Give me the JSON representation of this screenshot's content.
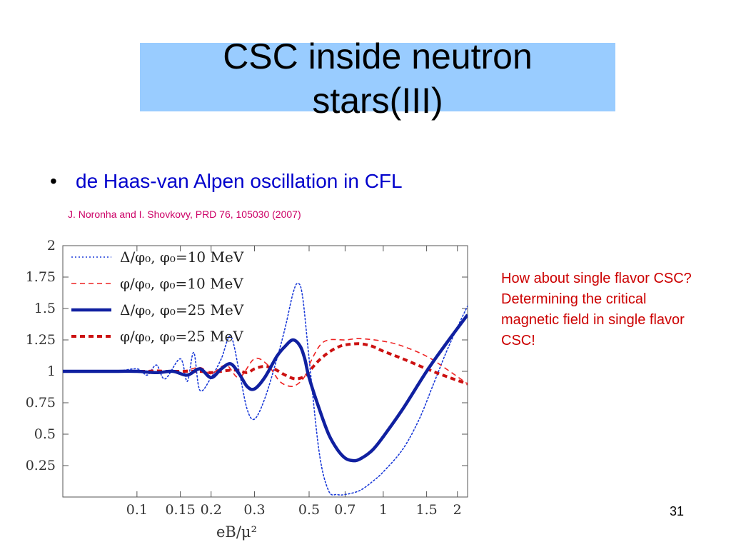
{
  "slide": {
    "title_line1": "CSC inside neutron",
    "title_line2": "stars(III)",
    "bullet": "de Haas-van Alpen oscillation in CFL",
    "citation": "J. Noronha and I. Shovkovy, PRD 76, 105030 (2007)",
    "side_note": "How about single flavor CSC? Determining the critical magnetic field in single flavor CSC!",
    "slide_number": "31"
  },
  "colors": {
    "title_band": "#99ccff",
    "bullet_text": "#0000cc",
    "citation": "#cc0066",
    "note": "#cc0000",
    "series_blue": "#1020a0",
    "series_red": "#cc1111"
  },
  "chart_data": {
    "type": "line",
    "xscale": "log",
    "xlim": [
      0.05,
      2.2
    ],
    "ylim": [
      0,
      2
    ],
    "xlabel": "eB/μ²",
    "ylabel": "",
    "xticks": [
      "0.1",
      "0.15",
      "0.2",
      "0.3",
      "0.5",
      "0.7",
      "1",
      "1.5",
      "2"
    ],
    "xtick_values": [
      0.1,
      0.15,
      0.2,
      0.3,
      0.5,
      0.7,
      1,
      1.5,
      2
    ],
    "yticks": [
      "0.25",
      "0.5",
      "0.75",
      "1",
      "1.25",
      "1.5",
      "1.75",
      "2"
    ],
    "ytick_values": [
      0.25,
      0.5,
      0.75,
      1,
      1.25,
      1.5,
      1.75,
      2
    ],
    "legend_position": "top-left",
    "series": [
      {
        "name": "Δ/φ₀, φ₀=10 MeV",
        "color": "#1a3ad8",
        "style": "dotted",
        "width": "thin",
        "x": [
          0.05,
          0.08,
          0.1,
          0.11,
          0.12,
          0.13,
          0.15,
          0.16,
          0.17,
          0.18,
          0.2,
          0.22,
          0.24,
          0.26,
          0.28,
          0.3,
          0.33,
          0.37,
          0.4,
          0.43,
          0.45,
          0.47,
          0.5,
          0.55,
          0.6,
          0.65,
          0.7,
          0.8,
          0.9,
          1.0,
          1.2,
          1.4,
          1.6,
          1.8,
          2.0,
          2.2
        ],
        "y": [
          1.0,
          1.0,
          1.02,
          0.97,
          1.05,
          0.94,
          1.1,
          0.92,
          1.15,
          0.85,
          0.95,
          1.1,
          1.28,
          1.0,
          0.7,
          0.62,
          0.78,
          1.1,
          1.35,
          1.62,
          1.7,
          1.6,
          1.1,
          0.35,
          0.05,
          0.02,
          0.02,
          0.05,
          0.12,
          0.2,
          0.38,
          0.62,
          0.9,
          1.15,
          1.35,
          1.52
        ]
      },
      {
        "name": "φ/φ₀, φ₀=10 MeV",
        "color": "#ee2222",
        "style": "dashed",
        "width": "thin",
        "x": [
          0.05,
          0.08,
          0.1,
          0.12,
          0.15,
          0.18,
          0.2,
          0.23,
          0.26,
          0.3,
          0.34,
          0.38,
          0.42,
          0.45,
          0.48,
          0.5,
          0.55,
          0.6,
          0.7,
          0.8,
          1.0,
          1.2,
          1.5,
          1.8,
          2.2
        ],
        "y": [
          1.0,
          1.0,
          1.0,
          1.01,
          1.0,
          1.03,
          0.98,
          1.05,
          0.95,
          1.1,
          1.05,
          0.92,
          0.88,
          0.9,
          0.96,
          1.05,
          1.2,
          1.25,
          1.25,
          1.26,
          1.24,
          1.2,
          1.12,
          1.02,
          0.9
        ]
      },
      {
        "name": "Δ/φ₀, φ₀=25 MeV",
        "color": "#1020a0",
        "style": "solid",
        "width": "thick",
        "x": [
          0.05,
          0.08,
          0.1,
          0.12,
          0.14,
          0.16,
          0.18,
          0.2,
          0.22,
          0.24,
          0.26,
          0.28,
          0.3,
          0.33,
          0.37,
          0.4,
          0.43,
          0.46,
          0.48,
          0.5,
          0.55,
          0.6,
          0.65,
          0.7,
          0.75,
          0.8,
          0.9,
          1.0,
          1.2,
          1.5,
          1.8,
          2.2
        ],
        "y": [
          1.0,
          1.0,
          1.0,
          0.99,
          1.0,
          0.97,
          1.02,
          0.95,
          1.02,
          1.06,
          0.98,
          0.88,
          0.86,
          0.95,
          1.12,
          1.2,
          1.25,
          1.2,
          1.1,
          0.95,
          0.7,
          0.5,
          0.38,
          0.31,
          0.29,
          0.3,
          0.37,
          0.48,
          0.7,
          1.0,
          1.22,
          1.45
        ]
      },
      {
        "name": "φ/φ₀, φ₀=25 MeV",
        "color": "#cc1111",
        "style": "dashed",
        "width": "thick",
        "x": [
          0.05,
          0.08,
          0.1,
          0.12,
          0.15,
          0.18,
          0.2,
          0.22,
          0.25,
          0.28,
          0.3,
          0.33,
          0.36,
          0.4,
          0.44,
          0.48,
          0.5,
          0.55,
          0.6,
          0.65,
          0.7,
          0.8,
          0.9,
          1.0,
          1.2,
          1.5,
          1.8,
          2.2
        ],
        "y": [
          1.0,
          1.0,
          1.0,
          1.0,
          1.0,
          1.0,
          0.99,
          1.0,
          1.01,
          0.99,
          1.02,
          1.04,
          1.02,
          0.97,
          0.94,
          0.96,
          1.0,
          1.09,
          1.15,
          1.19,
          1.21,
          1.22,
          1.2,
          1.16,
          1.1,
          1.02,
          0.96,
          0.9
        ]
      }
    ]
  }
}
